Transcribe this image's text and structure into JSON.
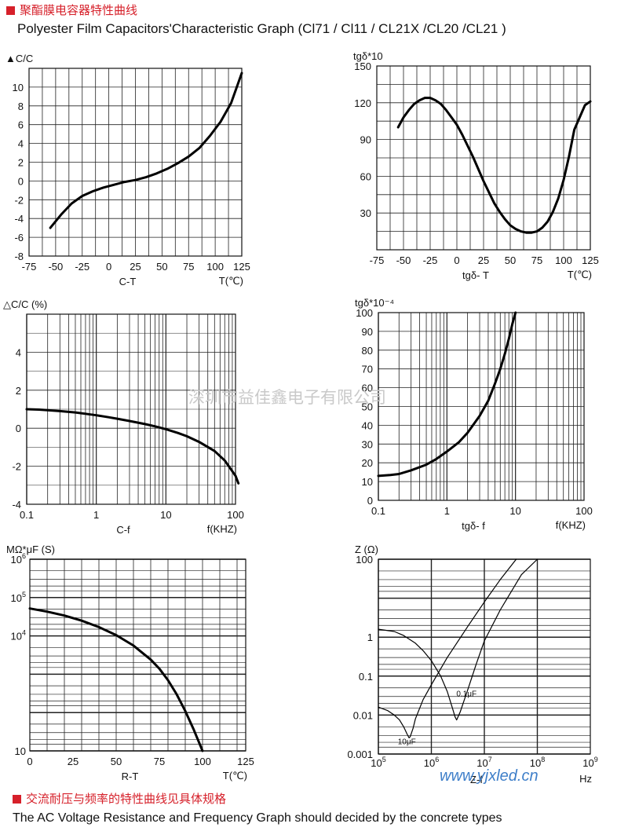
{
  "header": {
    "title_zh": "聚酯膜电容器特性曲线",
    "title_en": "Polyester Film Capacitors'Characteristic Graph (Cl71 / Cl11 / CL21X /CL20 /CL21 )"
  },
  "footer": {
    "title_zh": "交流耐压与频率的特性曲线见具体规格",
    "title_en": "The AC Voltage Resistance and Frequency Graph should decided by the concrete types"
  },
  "watermark": "深圳市益佳鑫电子有限公司",
  "website": "www.yjxled.cn",
  "chart_data": [
    {
      "id": "ct",
      "type": "line",
      "title": "C-T",
      "ylabel": "▲C/C",
      "xunit": "T(℃)",
      "xlim": [
        -75,
        125
      ],
      "ylim": [
        -8,
        12
      ],
      "xticks": [
        "-75",
        "-50",
        "-25",
        "0",
        "25",
        "50",
        "75",
        "100",
        "125"
      ],
      "yticks": [
        "-8",
        "-6",
        "-4",
        "-2",
        "0",
        "2",
        "4",
        "6",
        "8",
        "10"
      ],
      "series": [
        {
          "x": [
            -55,
            -45,
            -35,
            -25,
            -15,
            -5,
            5,
            15,
            25,
            35,
            45,
            55,
            65,
            75,
            85,
            95,
            105,
            115,
            125
          ],
          "y": [
            -5,
            -3.6,
            -2.4,
            -1.6,
            -1.1,
            -0.7,
            -0.4,
            -0.1,
            0.1,
            0.4,
            0.8,
            1.3,
            1.9,
            2.6,
            3.5,
            4.8,
            6.3,
            8.3,
            11.5
          ]
        }
      ]
    },
    {
      "id": "tgt",
      "type": "line",
      "title": "tgδ- T",
      "ylabel": "tgδ*10",
      "xunit": "T(℃)",
      "xlim": [
        -75,
        125
      ],
      "ylim": [
        0,
        150
      ],
      "xticks": [
        "-75",
        "-50",
        "-25",
        "0",
        "25",
        "50",
        "75",
        "100",
        "125"
      ],
      "yticks": [
        "30",
        "60",
        "90",
        "120",
        "150"
      ],
      "series": [
        {
          "x": [
            -55,
            -50,
            -45,
            -40,
            -35,
            -30,
            -25,
            -20,
            -15,
            -10,
            -5,
            0,
            5,
            10,
            15,
            20,
            25,
            30,
            35,
            40,
            45,
            50,
            55,
            60,
            65,
            70,
            75,
            80,
            85,
            90,
            95,
            100,
            105,
            110,
            115,
            120,
            125
          ],
          "y": [
            100,
            108,
            114,
            119,
            122,
            124,
            124,
            122,
            119,
            114,
            108,
            102,
            94,
            85,
            76,
            66,
            56,
            47,
            38,
            31,
            25,
            20,
            17,
            15,
            14,
            14,
            15,
            18,
            23,
            31,
            42,
            57,
            76,
            98,
            108,
            118,
            121
          ]
        }
      ]
    },
    {
      "id": "cf",
      "type": "line",
      "title": "C-f",
      "ylabel": "△C/C (%)",
      "xunit": "f(KHZ)",
      "xscale": "log",
      "xlim": [
        0.1,
        100
      ],
      "ylim": [
        -4,
        6
      ],
      "xticks": [
        "0.1",
        "1",
        "10",
        "100"
      ],
      "yticks": [
        "-4",
        "-2",
        "0",
        "2",
        "4"
      ],
      "series": [
        {
          "x": [
            0.1,
            0.15,
            0.2,
            0.3,
            0.5,
            0.7,
            1,
            1.5,
            2,
            3,
            5,
            7,
            10,
            15,
            20,
            30,
            50,
            70,
            100,
            110
          ],
          "y": [
            1.0,
            0.98,
            0.95,
            0.9,
            0.83,
            0.76,
            0.68,
            0.58,
            0.5,
            0.38,
            0.22,
            0.1,
            -0.05,
            -0.25,
            -0.42,
            -0.72,
            -1.2,
            -1.7,
            -2.5,
            -2.9
          ]
        }
      ]
    },
    {
      "id": "tgf",
      "type": "line",
      "title": "tgδ- f",
      "ylabel": "tgδ*10⁻⁴",
      "xunit": "f(KHZ)",
      "xscale": "log",
      "xlim": [
        0.1,
        100
      ],
      "ylim": [
        0,
        100
      ],
      "xticks": [
        "0.1",
        "1",
        "10",
        "100"
      ],
      "yticks": [
        "0",
        "10",
        "20",
        "30",
        "40",
        "50",
        "60",
        "70",
        "80",
        "90",
        "100"
      ],
      "series": [
        {
          "x": [
            0.1,
            0.15,
            0.2,
            0.3,
            0.5,
            0.7,
            1,
            1.5,
            2,
            3,
            4,
            5,
            6,
            7,
            8,
            9,
            10
          ],
          "y": [
            13,
            13.5,
            14,
            16,
            19,
            22,
            26,
            31,
            36,
            45,
            53,
            62,
            70,
            78,
            86,
            94,
            100
          ]
        }
      ]
    },
    {
      "id": "rt",
      "type": "line",
      "title": "R-T",
      "ylabel": "MΩ*μF (S)",
      "xunit": "T(℃)",
      "yscale": "log",
      "xlim": [
        0,
        125
      ],
      "ylim": [
        10,
        1000000
      ],
      "xticks": [
        "0",
        "25",
        "50",
        "75",
        "100",
        "125"
      ],
      "ytick_values": [
        10,
        10000,
        100000,
        1000000
      ],
      "ytick_labels": [
        {
          "base": "10",
          "exp": ""
        },
        {
          "base": "10",
          "exp": "4"
        },
        {
          "base": "10",
          "exp": "5"
        },
        {
          "base": "10",
          "exp": "6"
        }
      ],
      "series": [
        {
          "x": [
            0,
            10,
            20,
            30,
            40,
            50,
            60,
            70,
            75,
            80,
            85,
            90,
            95,
            100
          ],
          "y": [
            52000,
            43000,
            34000,
            25000,
            17000,
            10500,
            5600,
            2400,
            1400,
            700,
            300,
            110,
            35,
            10
          ]
        }
      ]
    },
    {
      "id": "zf",
      "type": "line",
      "title": "Z-f",
      "ylabel": "Z (Ω)",
      "xunit": "Hz",
      "xscale": "log",
      "yscale": "log",
      "xlim": [
        100000,
        1000000000
      ],
      "ylim": [
        0.001,
        100
      ],
      "xtick_values": [
        100000,
        1000000,
        10000000,
        100000000,
        1000000000
      ],
      "xtick_labels": [
        {
          "base": "10",
          "exp": "5"
        },
        {
          "base": "10",
          "exp": "6"
        },
        {
          "base": "10",
          "exp": "7"
        },
        {
          "base": "10",
          "exp": "8"
        },
        {
          "base": "10",
          "exp": "9"
        }
      ],
      "yticks": [
        "0.001",
        "0.01",
        "0.1",
        "1",
        "100"
      ],
      "ytick_values": [
        0.001,
        0.01,
        0.1,
        1,
        100
      ],
      "series": [
        {
          "name": "10μF",
          "x": [
            100000,
            150000,
            200000,
            250000,
            300000,
            350000,
            380000,
            400000,
            450000,
            500000,
            700000,
            1000000,
            2000000,
            5000000,
            10000000,
            20000000,
            40000000
          ],
          "y": [
            0.016,
            0.013,
            0.01,
            0.0075,
            0.005,
            0.0032,
            0.0026,
            0.0028,
            0.0045,
            0.008,
            0.025,
            0.06,
            0.3,
            2,
            8,
            30,
            100
          ]
        },
        {
          "name": "0.1μF",
          "x": [
            100000,
            200000,
            300000,
            500000,
            700000,
            1000000,
            1500000,
            2000000,
            2500000,
            2800000,
            3000000,
            3500000,
            5000000,
            7000000,
            10000000,
            20000000,
            50000000,
            100000000
          ],
          "y": [
            1.6,
            1.4,
            1.1,
            0.7,
            0.45,
            0.25,
            0.1,
            0.04,
            0.015,
            0.009,
            0.0075,
            0.012,
            0.05,
            0.2,
            0.8,
            5,
            40,
            100
          ]
        }
      ]
    }
  ]
}
